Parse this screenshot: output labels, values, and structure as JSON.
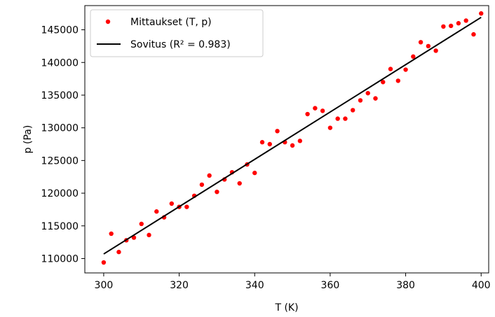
{
  "chart_data": {
    "type": "scatter",
    "xlabel": "T (K)",
    "ylabel": "p (Pa)",
    "xlim": [
      295,
      402
    ],
    "ylim": [
      107800,
      148700
    ],
    "x_ticks": [
      300,
      320,
      340,
      360,
      380,
      400
    ],
    "y_ticks": [
      110000,
      115000,
      120000,
      125000,
      130000,
      135000,
      140000,
      145000
    ],
    "grid": false,
    "legend_position": "top-left",
    "series": [
      {
        "name": "Mittaukset (T, p)",
        "kind": "scatter",
        "color": "#ff0000",
        "x": [
          300,
          302,
          304,
          306,
          308,
          310,
          312,
          314,
          316,
          318,
          320,
          322,
          324,
          326,
          328,
          330,
          332,
          334,
          336,
          338,
          340,
          342,
          344,
          346,
          348,
          350,
          352,
          354,
          356,
          358,
          360,
          362,
          364,
          366,
          368,
          370,
          372,
          374,
          376,
          378,
          380,
          382,
          384,
          386,
          388,
          390,
          392,
          394,
          396,
          398,
          400
        ],
        "y": [
          109400,
          113800,
          111000,
          112800,
          113200,
          115300,
          113600,
          117200,
          116300,
          118400,
          117900,
          117900,
          119600,
          121300,
          122700,
          120200,
          122100,
          123200,
          121500,
          124400,
          123100,
          127800,
          127500,
          129500,
          127800,
          127300,
          128000,
          132100,
          133000,
          132600,
          130000,
          131400,
          131400,
          132700,
          134200,
          135300,
          134500,
          137000,
          139000,
          137200,
          138900,
          140900,
          143100,
          142500,
          141800,
          145500,
          145600,
          146000,
          146400,
          144300,
          147500
        ]
      },
      {
        "name": "Sovitus (R² = 0.983)",
        "kind": "line",
        "color": "#000000",
        "x": [
          300,
          400
        ],
        "y": [
          110700,
          146900
        ]
      }
    ]
  }
}
